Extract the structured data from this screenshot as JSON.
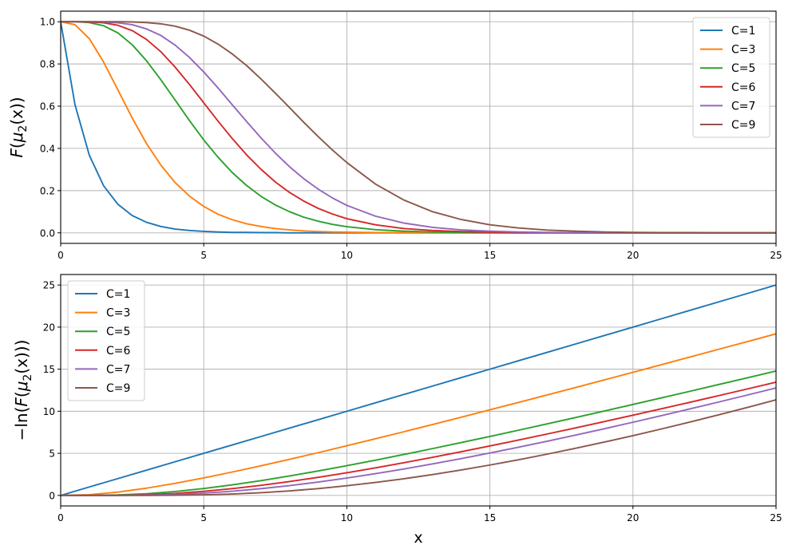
{
  "chart_data": [
    {
      "type": "line",
      "title": "",
      "xlabel": "",
      "ylabel": "F(μ₂(x))",
      "ylabel_parts": {
        "pre": "F(",
        "mu": "μ",
        "sub": "2",
        "post": "(x))"
      },
      "xlim": [
        0,
        25
      ],
      "ylim": [
        -0.05,
        1.05
      ],
      "xticks": [
        "0",
        "5",
        "10",
        "15",
        "20",
        "25"
      ],
      "yticks": [
        "0.0",
        "0.2",
        "0.4",
        "0.6",
        "0.8",
        "1.0"
      ],
      "grid": true,
      "legend_position": "top-right",
      "x": [
        0,
        0.5,
        1,
        1.5,
        2,
        2.5,
        3,
        3.5,
        4,
        4.5,
        5,
        5.5,
        6,
        6.5,
        7,
        7.5,
        8,
        8.5,
        9,
        9.5,
        10,
        11,
        12,
        13,
        14,
        15,
        16,
        17,
        18,
        19,
        20,
        21,
        22,
        23,
        24,
        25
      ],
      "series": [
        {
          "name": "C=1",
          "color": "#1f77b4",
          "values": [
            1.0,
            0.607,
            0.368,
            0.223,
            0.135,
            0.082,
            0.05,
            0.03,
            0.018,
            0.011,
            0.007,
            0.004,
            0.002,
            0.002,
            0.001,
            0.001,
            0.0,
            0.0,
            0.0,
            0.0,
            0.0,
            0.0,
            0.0,
            0.0,
            0.0,
            0.0,
            0.0,
            0.0,
            0.0,
            0.0,
            0.0,
            0.0,
            0.0,
            0.0,
            0.0,
            0.0
          ]
        },
        {
          "name": "C=3",
          "color": "#ff7f0e",
          "values": [
            1.0,
            0.986,
            0.92,
            0.809,
            0.677,
            0.544,
            0.423,
            0.321,
            0.238,
            0.174,
            0.125,
            0.088,
            0.062,
            0.043,
            0.03,
            0.02,
            0.014,
            0.009,
            0.006,
            0.004,
            0.003,
            0.001,
            0.001,
            0.0,
            0.0,
            0.0,
            0.0,
            0.0,
            0.0,
            0.0,
            0.0,
            0.0,
            0.0,
            0.0,
            0.0,
            0.0
          ]
        },
        {
          "name": "C=5",
          "color": "#2ca02c",
          "values": [
            1.0,
            1.0,
            0.996,
            0.981,
            0.947,
            0.891,
            0.815,
            0.725,
            0.629,
            0.532,
            0.44,
            0.358,
            0.285,
            0.224,
            0.173,
            0.132,
            0.1,
            0.074,
            0.055,
            0.04,
            0.029,
            0.015,
            0.008,
            0.004,
            0.002,
            0.001,
            0.0,
            0.0,
            0.0,
            0.0,
            0.0,
            0.0,
            0.0,
            0.0,
            0.0,
            0.0
          ]
        },
        {
          "name": "C=6",
          "color": "#d62728",
          "values": [
            1.0,
            1.0,
            0.999,
            0.995,
            0.983,
            0.958,
            0.916,
            0.858,
            0.785,
            0.703,
            0.616,
            0.529,
            0.446,
            0.369,
            0.301,
            0.241,
            0.191,
            0.15,
            0.116,
            0.089,
            0.067,
            0.038,
            0.02,
            0.011,
            0.006,
            0.003,
            0.001,
            0.001,
            0.0,
            0.0,
            0.0,
            0.0,
            0.0,
            0.0,
            0.0,
            0.0
          ]
        },
        {
          "name": "C=7",
          "color": "#9467bd",
          "values": [
            1.0,
            1.0,
            1.0,
            0.999,
            0.995,
            0.986,
            0.966,
            0.935,
            0.889,
            0.831,
            0.762,
            0.686,
            0.606,
            0.527,
            0.45,
            0.378,
            0.313,
            0.256,
            0.207,
            0.165,
            0.13,
            0.079,
            0.046,
            0.026,
            0.014,
            0.008,
            0.004,
            0.002,
            0.001,
            0.001,
            0.0,
            0.0,
            0.0,
            0.0,
            0.0,
            0.0
          ]
        },
        {
          "name": "C=9",
          "color": "#8c564b",
          "values": [
            1.0,
            1.0,
            1.0,
            1.0,
            1.0,
            0.999,
            0.996,
            0.99,
            0.979,
            0.96,
            0.932,
            0.894,
            0.847,
            0.792,
            0.729,
            0.662,
            0.593,
            0.523,
            0.456,
            0.392,
            0.333,
            0.231,
            0.155,
            0.1,
            0.063,
            0.038,
            0.023,
            0.013,
            0.008,
            0.004,
            0.002,
            0.001,
            0.001,
            0.0,
            0.0,
            0.0
          ]
        }
      ]
    },
    {
      "type": "line",
      "title": "",
      "xlabel": "x",
      "ylabel": "−ln(F(μ₂(x)))",
      "ylabel_parts": {
        "pre": "−ln(F(",
        "mu": "μ",
        "sub": "2",
        "post": "(x)))"
      },
      "xlim": [
        0,
        25
      ],
      "ylim": [
        -1.25,
        26.25
      ],
      "xticks": [
        "0",
        "5",
        "10",
        "15",
        "20",
        "25"
      ],
      "yticks": [
        "0",
        "5",
        "10",
        "15",
        "20",
        "25"
      ],
      "grid": true,
      "legend_position": "top-left",
      "x": [
        0,
        1,
        2,
        3,
        4,
        5,
        6,
        7,
        8,
        9,
        10,
        11,
        12,
        13,
        14,
        15,
        16,
        17,
        18,
        19,
        20,
        21,
        22,
        23,
        24,
        25
      ],
      "series": [
        {
          "name": "C=1",
          "color": "#1f77b4",
          "values": [
            0,
            1,
            2,
            3,
            4,
            5,
            6,
            7,
            8,
            9,
            10,
            11,
            12,
            13,
            14,
            15,
            16,
            17,
            18,
            19,
            20,
            21,
            22,
            23,
            24,
            25
          ]
        },
        {
          "name": "C=3",
          "color": "#ff7f0e",
          "values": [
            0,
            0.08,
            0.39,
            0.86,
            1.43,
            2.08,
            2.78,
            3.52,
            4.29,
            5.08,
            5.9,
            6.73,
            7.57,
            8.43,
            9.29,
            10.17,
            11.05,
            11.94,
            12.83,
            13.73,
            14.63,
            15.54,
            16.45,
            17.37,
            18.28,
            19.2
          ]
        },
        {
          "name": "C=5",
          "color": "#2ca02c",
          "values": [
            0,
            0.004,
            0.054,
            0.204,
            0.463,
            0.82,
            1.257,
            1.758,
            2.311,
            2.905,
            3.533,
            4.189,
            4.867,
            5.565,
            6.279,
            7.007,
            7.747,
            8.499,
            9.259,
            10.029,
            10.806,
            11.59,
            12.381,
            13.178,
            13.98,
            14.788
          ]
        },
        {
          "name": "C=6",
          "color": "#d62728",
          "values": [
            0,
            0.001,
            0.017,
            0.088,
            0.241,
            0.485,
            0.807,
            1.198,
            1.649,
            2.15,
            2.695,
            3.275,
            3.888,
            4.527,
            5.191,
            5.875,
            6.578,
            7.297,
            8.03,
            8.775,
            9.533,
            10.3,
            11.076,
            11.861,
            12.654,
            13.453
          ]
        },
        {
          "name": "C=7",
          "color": "#9467bd",
          "values": [
            0,
            0.0,
            0.005,
            0.035,
            0.117,
            0.271,
            0.5,
            0.8,
            1.164,
            1.587,
            2.063,
            2.584,
            3.146,
            3.745,
            4.377,
            5.038,
            5.726,
            6.437,
            7.171,
            7.924,
            8.695,
            9.483,
            10.286,
            11.102,
            11.931,
            12.772
          ]
        },
        {
          "name": "C=9",
          "color": "#8c564b",
          "values": [
            0,
            0.0,
            0.0,
            0.004,
            0.021,
            0.07,
            0.166,
            0.319,
            0.534,
            0.81,
            1.146,
            1.539,
            1.985,
            2.481,
            3.024,
            3.61,
            4.237,
            4.902,
            5.603,
            6.338,
            7.104,
            7.901,
            8.726,
            9.578,
            10.455,
            11.357
          ]
        }
      ]
    }
  ]
}
